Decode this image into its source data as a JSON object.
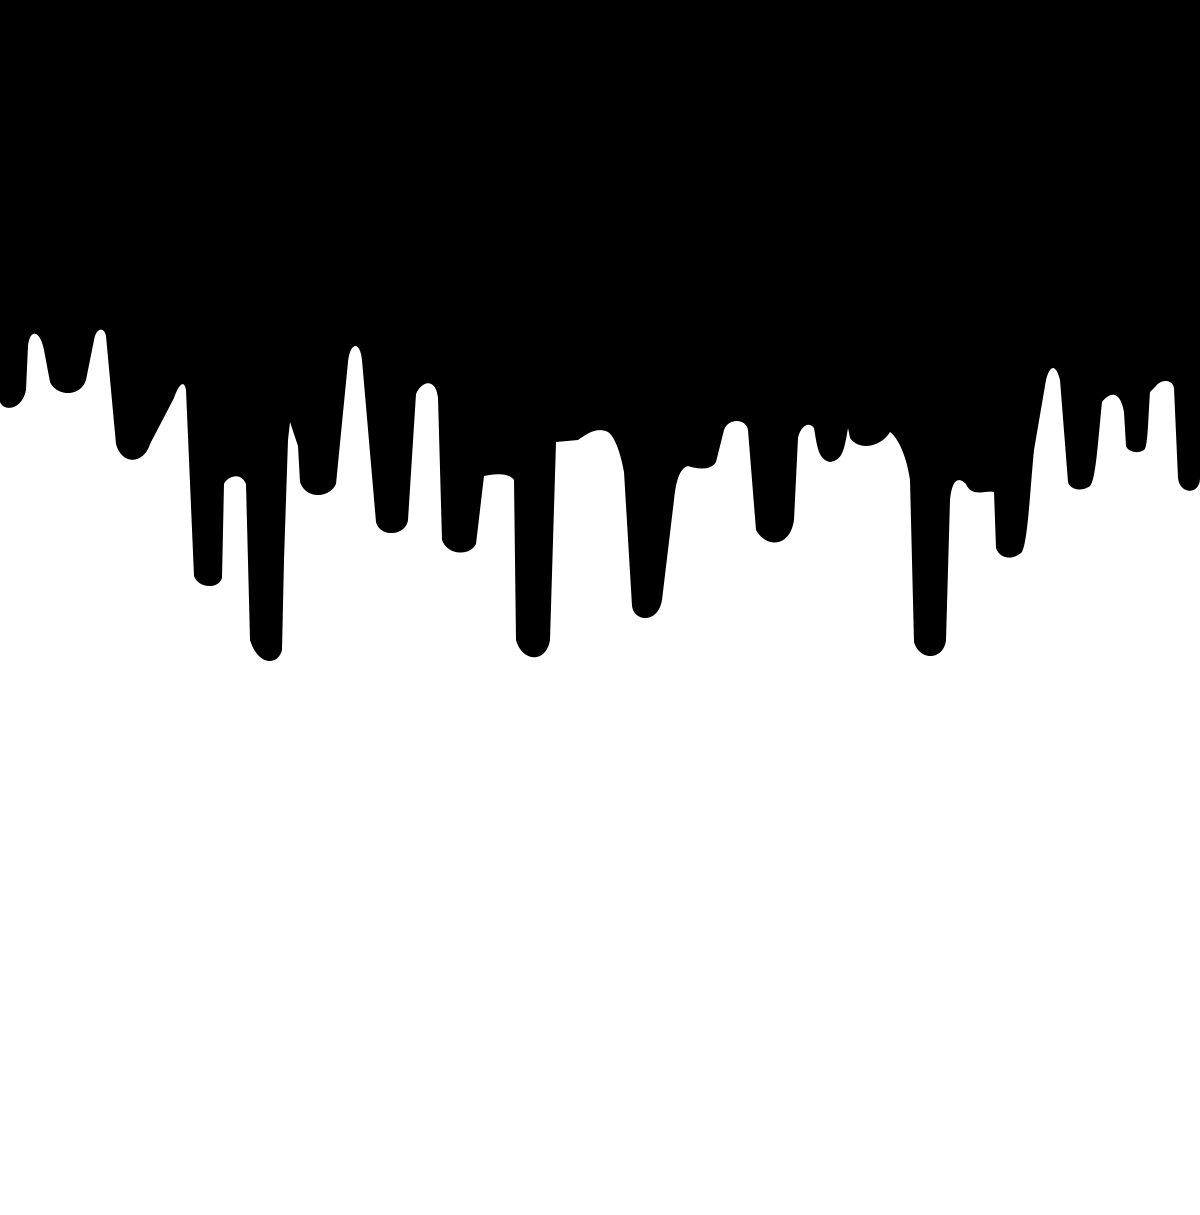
{
  "artwork": {
    "subject": "dripping-paint-border",
    "colors": {
      "paint": "#000000",
      "background": "#ffffff"
    }
  }
}
